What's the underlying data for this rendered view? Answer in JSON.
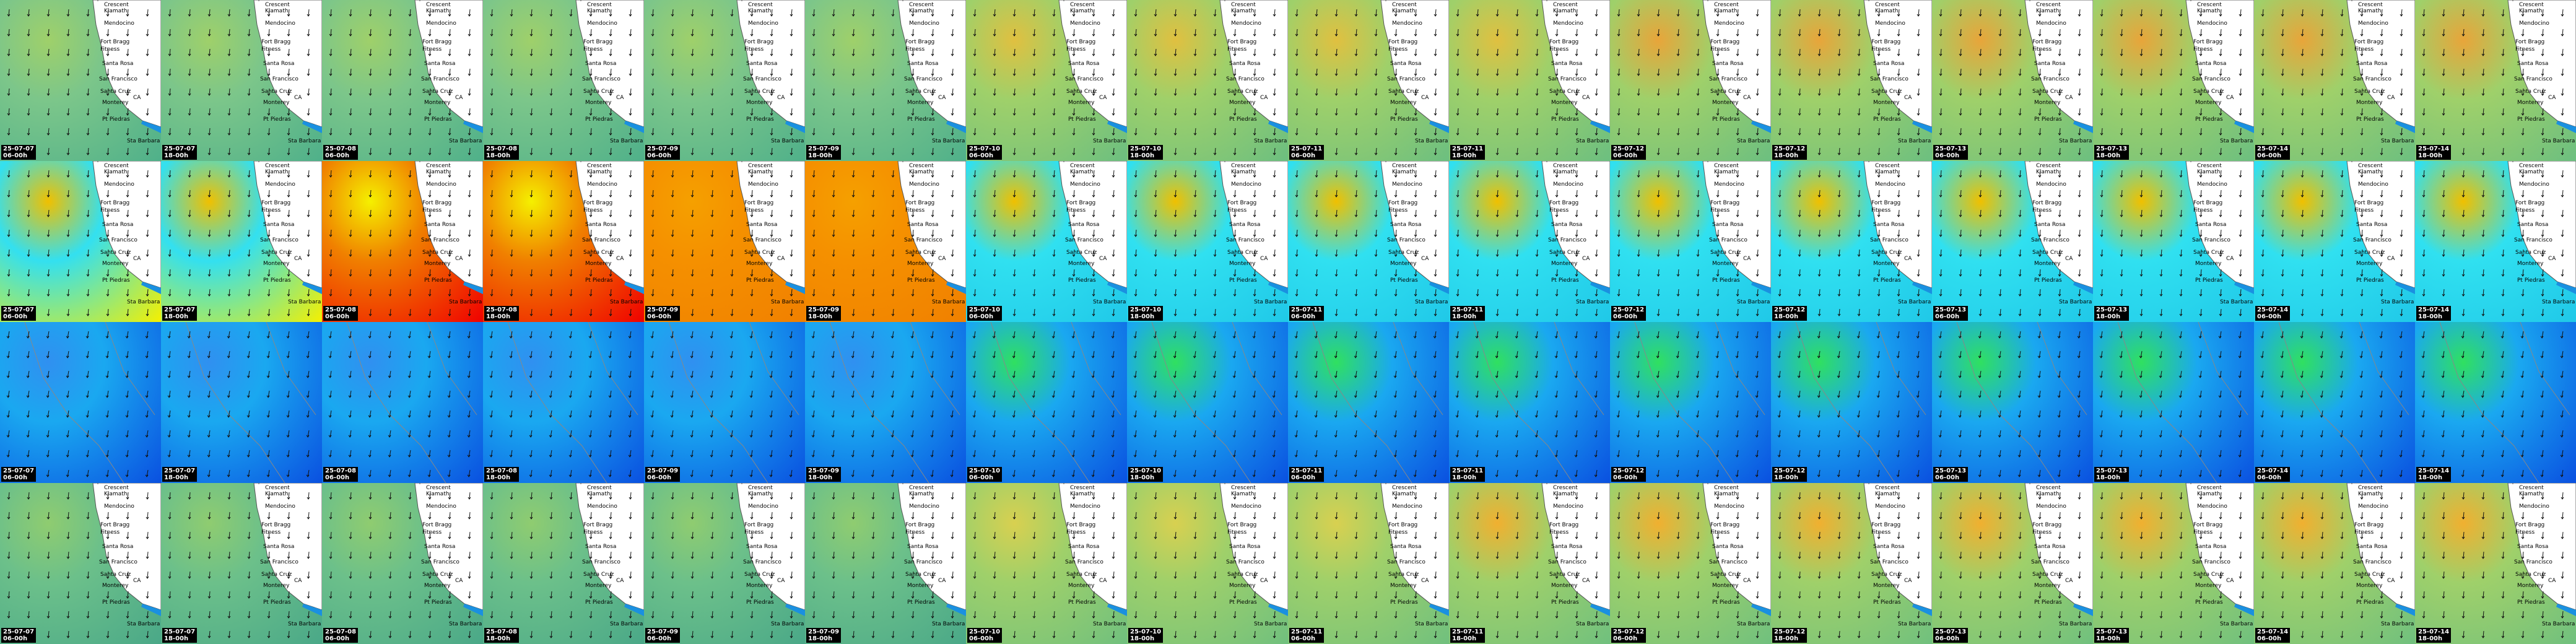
{
  "columns": [
    {
      "date": "25-07-07",
      "time": "06-00h"
    },
    {
      "date": "25-07-07",
      "time": "18-00h"
    },
    {
      "date": "25-07-08",
      "time": "06-00h"
    },
    {
      "date": "25-07-08",
      "time": "18-00h"
    },
    {
      "date": "25-07-09",
      "time": "06-00h"
    },
    {
      "date": "25-07-09",
      "time": "18-00h"
    },
    {
      "date": "25-07-10",
      "time": "06-00h"
    },
    {
      "date": "25-07-10",
      "time": "18-00h"
    },
    {
      "date": "25-07-11",
      "time": "06-00h"
    },
    {
      "date": "25-07-11",
      "time": "18-00h"
    },
    {
      "date": "25-07-12",
      "time": "06-00h"
    },
    {
      "date": "25-07-12",
      "time": "18-00h"
    },
    {
      "date": "25-07-13",
      "time": "06-00h"
    },
    {
      "date": "25-07-13",
      "time": "18-00h"
    },
    {
      "date": "25-07-14",
      "time": "06-00h"
    },
    {
      "date": "25-07-14",
      "time": "18-00h"
    }
  ],
  "map_labels": [
    "Crescent",
    "Klamath",
    "Mendocino",
    "Fort Bragg",
    "Fitness",
    "Santa Rosa",
    "San Francisco",
    "Santa Cruz",
    "Monterey",
    "Pt Piedras",
    "CA",
    "Sta Barbara"
  ]
}
